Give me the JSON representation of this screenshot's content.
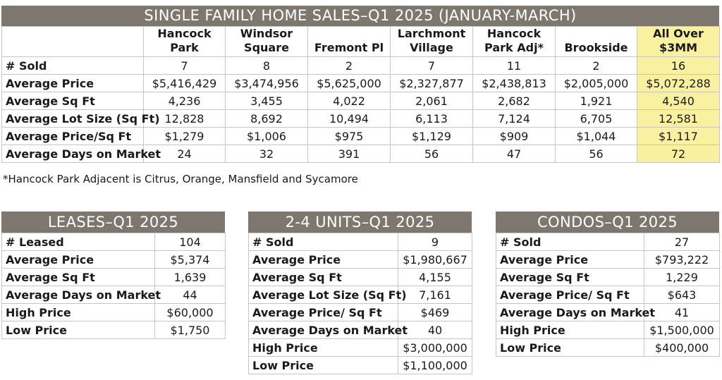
{
  "sfh": {
    "title": "SINGLE FAMILY HOME SALES–Q1 2025 (JANUARY-MARCH)",
    "columns": [
      {
        "line1": "Hancock",
        "line2": "Park"
      },
      {
        "line1": "Windsor",
        "line2": "Square"
      },
      {
        "line1": "",
        "line2": "Fremont Pl"
      },
      {
        "line1": "Larchmont",
        "line2": "Village"
      },
      {
        "line1": "Hancock",
        "line2": "Park Adj*"
      },
      {
        "line1": "",
        "line2": "Brookside"
      },
      {
        "line1": "All Over",
        "line2": "$3MM"
      }
    ],
    "rows": [
      {
        "label": "# Sold",
        "values": [
          "7",
          "8",
          "2",
          "7",
          "11",
          "2",
          "16"
        ]
      },
      {
        "label": "Average Price",
        "values": [
          "$5,416,429",
          "$3,474,956",
          "$5,625,000",
          "$2,327,877",
          "$2,438,813",
          "$2,005,000",
          "$5,072,288"
        ]
      },
      {
        "label": "Average Sq Ft",
        "values": [
          "4,236",
          "3,455",
          "4,022",
          "2,061",
          "2,682",
          "1,921",
          "4,540"
        ]
      },
      {
        "label": "Average Lot Size (Sq Ft)",
        "values": [
          "12,828",
          "8,692",
          "10,494",
          "6,113",
          "7,124",
          "6,705",
          "12,581"
        ]
      },
      {
        "label": "Average Price/Sq Ft",
        "values": [
          "$1,279",
          "$1,006",
          "$975",
          "$1,129",
          "$909",
          "$1,044",
          "$1,117"
        ]
      },
      {
        "label": "Average Days on Market",
        "values": [
          "24",
          "32",
          "391",
          "56",
          "47",
          "56",
          "72"
        ]
      }
    ],
    "highlight_color": "#faf1a0",
    "footnote": "*Hancock Park Adjacent is Citrus, Orange, Mansfield and Sycamore"
  },
  "leases": {
    "title": "LEASES–Q1 2025",
    "rows": [
      {
        "label": "# Leased",
        "value": "104"
      },
      {
        "label": "Average Price",
        "value": "$5,374"
      },
      {
        "label": "Average Sq Ft",
        "value": "1,639"
      },
      {
        "label": "Average Days on Market",
        "value": "44"
      },
      {
        "label": "High Price",
        "value": "$60,000"
      },
      {
        "label": "Low Price",
        "value": "$1,750"
      }
    ]
  },
  "units": {
    "title": "2-4 UNITS–Q1 2025",
    "rows": [
      {
        "label": "# Sold",
        "value": "9"
      },
      {
        "label": "Average Price",
        "value": "$1,980,667"
      },
      {
        "label": "Average Sq Ft",
        "value": "4,155"
      },
      {
        "label": "Average Lot Size (Sq Ft)",
        "value": "7,161"
      },
      {
        "label": "Average Price/ Sq Ft",
        "value": "$469"
      },
      {
        "label": "Average Days on Market",
        "value": "40"
      },
      {
        "label": "High Price",
        "value": "$3,000,000"
      },
      {
        "label": "Low Price",
        "value": "$1,100,000"
      }
    ]
  },
  "condos": {
    "title": "CONDOS–Q1 2025",
    "rows": [
      {
        "label": "# Sold",
        "value": "27"
      },
      {
        "label": "Average Price",
        "value": "$793,222"
      },
      {
        "label": "Average Sq Ft",
        "value": "1,229"
      },
      {
        "label": "Average Price/ Sq Ft",
        "value": "$643"
      },
      {
        "label": "Average Days on Market",
        "value": "41"
      },
      {
        "label": "High Price",
        "value": "$1,500,000"
      },
      {
        "label": "Low Price",
        "value": "$400,000"
      }
    ]
  },
  "colors": {
    "header_bar": "#7d7770",
    "highlight": "#faf1a0"
  }
}
